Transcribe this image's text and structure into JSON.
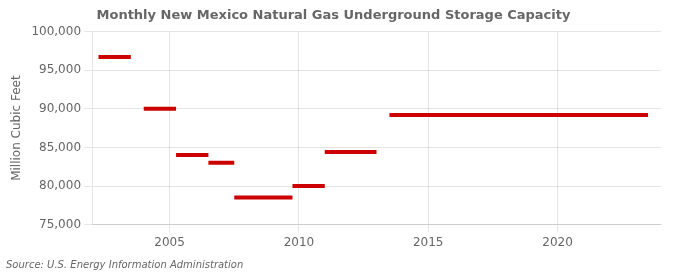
{
  "chart_data": {
    "type": "segment",
    "title": "Monthly New Mexico Natural Gas Underground Storage Capacity",
    "ylabel": "Million Cubic Feet",
    "annotation": "Source: U.S. Energy Information Administration",
    "color": "#cc0000",
    "segments": [
      {
        "x_start": 2002.25,
        "x_end": 2003.5,
        "y": 96700
      },
      {
        "x_start": 2004.0,
        "x_end": 2005.25,
        "y": 90000
      },
      {
        "x_start": 2005.25,
        "x_end": 2006.5,
        "y": 84000
      },
      {
        "x_start": 2006.5,
        "x_end": 2007.5,
        "y": 83000
      },
      {
        "x_start": 2007.5,
        "x_end": 2009.75,
        "y": 78500
      },
      {
        "x_start": 2009.75,
        "x_end": 2011.0,
        "y": 80000
      },
      {
        "x_start": 2011.0,
        "x_end": 2013.0,
        "y": 84400
      },
      {
        "x_start": 2013.5,
        "x_end": 2023.5,
        "y": 89200
      }
    ],
    "xlim": [
      2002.0,
      2024.0
    ],
    "xticks": [
      2005,
      2010,
      2015,
      2020
    ],
    "ylim": [
      75000,
      100000
    ],
    "yticks": [
      {
        "value": 75000,
        "label": "75,000"
      },
      {
        "value": 80000,
        "label": "80,000"
      },
      {
        "value": 85000,
        "label": "85,000"
      },
      {
        "value": 90000,
        "label": "90,000"
      },
      {
        "value": 95000,
        "label": "95,000"
      },
      {
        "value": 100000,
        "label": "100,000"
      }
    ],
    "grid": true
  }
}
